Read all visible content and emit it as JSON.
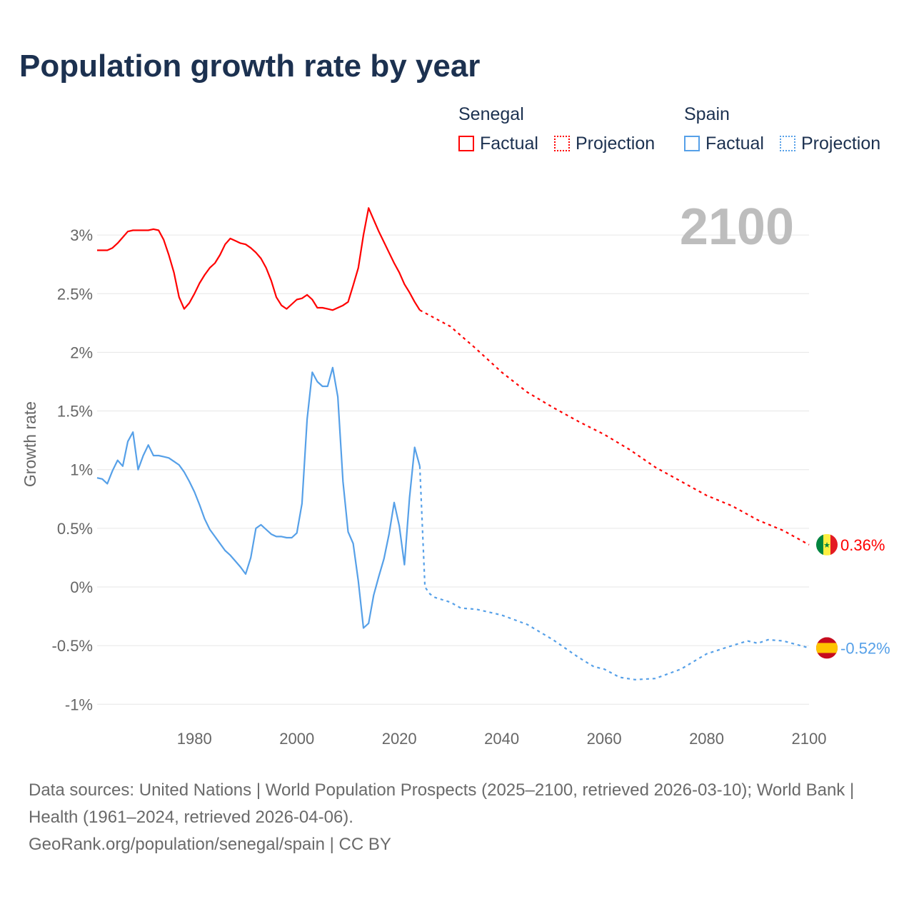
{
  "title": "Population growth rate by year",
  "legend": {
    "groups": [
      {
        "name": "Senegal",
        "factual": "Factual",
        "projection": "Projection",
        "color": "#ff0000"
      },
      {
        "name": "Spain",
        "factual": "Factual",
        "projection": "Projection",
        "color": "#56a0e8"
      }
    ]
  },
  "source_line1": "Data sources: United Nations | World Population Prospects (2025–2100, retrieved 2026-03-10); World Bank | Health (1961–2024, retrieved 2026-04-06).",
  "source_line2": "GeoRank.org/population/senegal/spain | CC BY",
  "chart_data": {
    "type": "line",
    "title": "Population growth rate by year",
    "ylabel": "Growth rate",
    "xlabel": "",
    "year_label": "2100",
    "xlim": [
      1961,
      2100
    ],
    "ylim": [
      -1.1,
      3.3
    ],
    "grid": true,
    "xticks": [
      1980,
      2000,
      2020,
      2040,
      2060,
      2080,
      2100
    ],
    "yticks": [
      {
        "v": 3,
        "l": "3%"
      },
      {
        "v": 2.5,
        "l": "2.5%"
      },
      {
        "v": 2,
        "l": "2%"
      },
      {
        "v": 1.5,
        "l": "1.5%"
      },
      {
        "v": 1,
        "l": "1%"
      },
      {
        "v": 0.5,
        "l": "0.5%"
      },
      {
        "v": 0,
        "l": "0%"
      },
      {
        "v": -0.5,
        "l": "-0.5%"
      },
      {
        "v": -1,
        "l": "-1%"
      }
    ],
    "series": [
      {
        "name": "Senegal",
        "color": "#ff0000",
        "end_label": "0.36%",
        "flag": "senegal",
        "factual": {
          "x": [
            1961,
            1962,
            1963,
            1964,
            1965,
            1966,
            1967,
            1968,
            1969,
            1970,
            1971,
            1972,
            1973,
            1974,
            1975,
            1976,
            1977,
            1978,
            1979,
            1980,
            1981,
            1982,
            1983,
            1984,
            1985,
            1986,
            1987,
            1988,
            1989,
            1990,
            1991,
            1992,
            1993,
            1994,
            1995,
            1996,
            1997,
            1998,
            1999,
            2000,
            2001,
            2002,
            2003,
            2004,
            2005,
            2006,
            2007,
            2008,
            2009,
            2010,
            2011,
            2012,
            2013,
            2014,
            2015,
            2016,
            2017,
            2018,
            2019,
            2020,
            2021,
            2022,
            2023,
            2024
          ],
          "y": [
            2.87,
            2.87,
            2.87,
            2.89,
            2.93,
            2.98,
            3.03,
            3.04,
            3.04,
            3.04,
            3.04,
            3.05,
            3.04,
            2.96,
            2.83,
            2.68,
            2.47,
            2.37,
            2.42,
            2.5,
            2.59,
            2.66,
            2.72,
            2.76,
            2.83,
            2.92,
            2.97,
            2.95,
            2.93,
            2.92,
            2.89,
            2.85,
            2.8,
            2.72,
            2.61,
            2.47,
            2.4,
            2.37,
            2.41,
            2.45,
            2.46,
            2.49,
            2.45,
            2.38,
            2.38,
            2.37,
            2.36,
            2.38,
            2.4,
            2.43,
            2.57,
            2.72,
            3.0,
            3.23,
            3.13,
            3.03,
            2.94,
            2.85,
            2.76,
            2.68,
            2.58,
            2.51,
            2.43,
            2.36
          ]
        },
        "projection": {
          "x": [
            2024,
            2030,
            2035,
            2040,
            2045,
            2050,
            2055,
            2060,
            2065,
            2070,
            2075,
            2080,
            2085,
            2090,
            2095,
            2100
          ],
          "y": [
            2.36,
            2.22,
            2.03,
            1.83,
            1.66,
            1.53,
            1.41,
            1.3,
            1.17,
            1.02,
            0.9,
            0.78,
            0.69,
            0.57,
            0.48,
            0.36
          ]
        }
      },
      {
        "name": "Spain",
        "color": "#56a0e8",
        "end_label": "-0.52%",
        "flag": "spain",
        "factual": {
          "x": [
            1961,
            1962,
            1963,
            1964,
            1965,
            1966,
            1967,
            1968,
            1969,
            1970,
            1971,
            1972,
            1973,
            1974,
            1975,
            1976,
            1977,
            1978,
            1979,
            1980,
            1981,
            1982,
            1983,
            1984,
            1985,
            1986,
            1987,
            1988,
            1989,
            1990,
            1991,
            1992,
            1993,
            1994,
            1995,
            1996,
            1997,
            1998,
            1999,
            2000,
            2001,
            2002,
            2003,
            2004,
            2005,
            2006,
            2007,
            2008,
            2009,
            2010,
            2011,
            2012,
            2013,
            2014,
            2015,
            2016,
            2017,
            2018,
            2019,
            2020,
            2021,
            2022,
            2023,
            2024
          ],
          "y": [
            0.93,
            0.92,
            0.88,
            0.99,
            1.08,
            1.03,
            1.24,
            1.32,
            1.0,
            1.12,
            1.21,
            1.12,
            1.12,
            1.11,
            1.1,
            1.07,
            1.04,
            0.98,
            0.9,
            0.81,
            0.7,
            0.58,
            0.49,
            0.43,
            0.37,
            0.31,
            0.27,
            0.22,
            0.17,
            0.11,
            0.25,
            0.5,
            0.53,
            0.49,
            0.45,
            0.43,
            0.43,
            0.42,
            0.42,
            0.46,
            0.71,
            1.43,
            1.83,
            1.75,
            1.71,
            1.71,
            1.87,
            1.62,
            0.9,
            0.47,
            0.37,
            0.05,
            -0.35,
            -0.31,
            -0.07,
            0.09,
            0.24,
            0.45,
            0.72,
            0.52,
            0.19,
            0.76,
            1.19,
            1.03
          ]
        },
        "projection": {
          "x": [
            2024,
            2025,
            2026,
            2027,
            2030,
            2032,
            2035,
            2040,
            2045,
            2050,
            2055,
            2058,
            2060,
            2063,
            2066,
            2070,
            2075,
            2080,
            2085,
            2088,
            2090,
            2092,
            2095,
            2100
          ],
          "y": [
            1.03,
            0.0,
            -0.06,
            -0.09,
            -0.13,
            -0.18,
            -0.19,
            -0.24,
            -0.32,
            -0.45,
            -0.6,
            -0.68,
            -0.7,
            -0.77,
            -0.79,
            -0.78,
            -0.7,
            -0.57,
            -0.5,
            -0.46,
            -0.48,
            -0.45,
            -0.46,
            -0.52
          ]
        }
      }
    ]
  }
}
